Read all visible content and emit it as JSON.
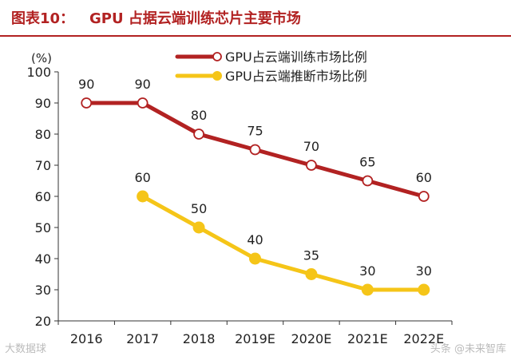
{
  "figure": {
    "label": "图表10：",
    "title": "GPU 占据云端训练芯片主要市场"
  },
  "watermarks": {
    "left": "大数据球",
    "right": "头条 @未来智库"
  },
  "colors": {
    "training": "#b22222",
    "inference": "#f5c518",
    "title": "#b22222"
  },
  "chart_data": {
    "type": "line",
    "categories": [
      "2016",
      "2017",
      "2018",
      "2019E",
      "2020E",
      "2021E",
      "2022E"
    ],
    "ylabel": "(%)",
    "ylim": [
      20,
      100
    ],
    "yticks": [
      20,
      30,
      40,
      50,
      60,
      70,
      80,
      90,
      100
    ],
    "grid": false,
    "legend_position": "top-right",
    "series": [
      {
        "name": "GPU占云端训练市场比例",
        "color": "#b22222",
        "marker": "hollow-circle",
        "values": [
          90,
          90,
          80,
          75,
          70,
          65,
          60
        ],
        "labels": [
          "90",
          "90",
          "80",
          "75",
          "70",
          "65",
          "60"
        ]
      },
      {
        "name": "GPU占云端推断市场比例",
        "color": "#f5c518",
        "marker": "filled-circle",
        "values": [
          null,
          60,
          50,
          40,
          35,
          30,
          30
        ],
        "labels": [
          null,
          "60",
          "50",
          "40",
          "35",
          "30",
          "30"
        ]
      }
    ]
  }
}
